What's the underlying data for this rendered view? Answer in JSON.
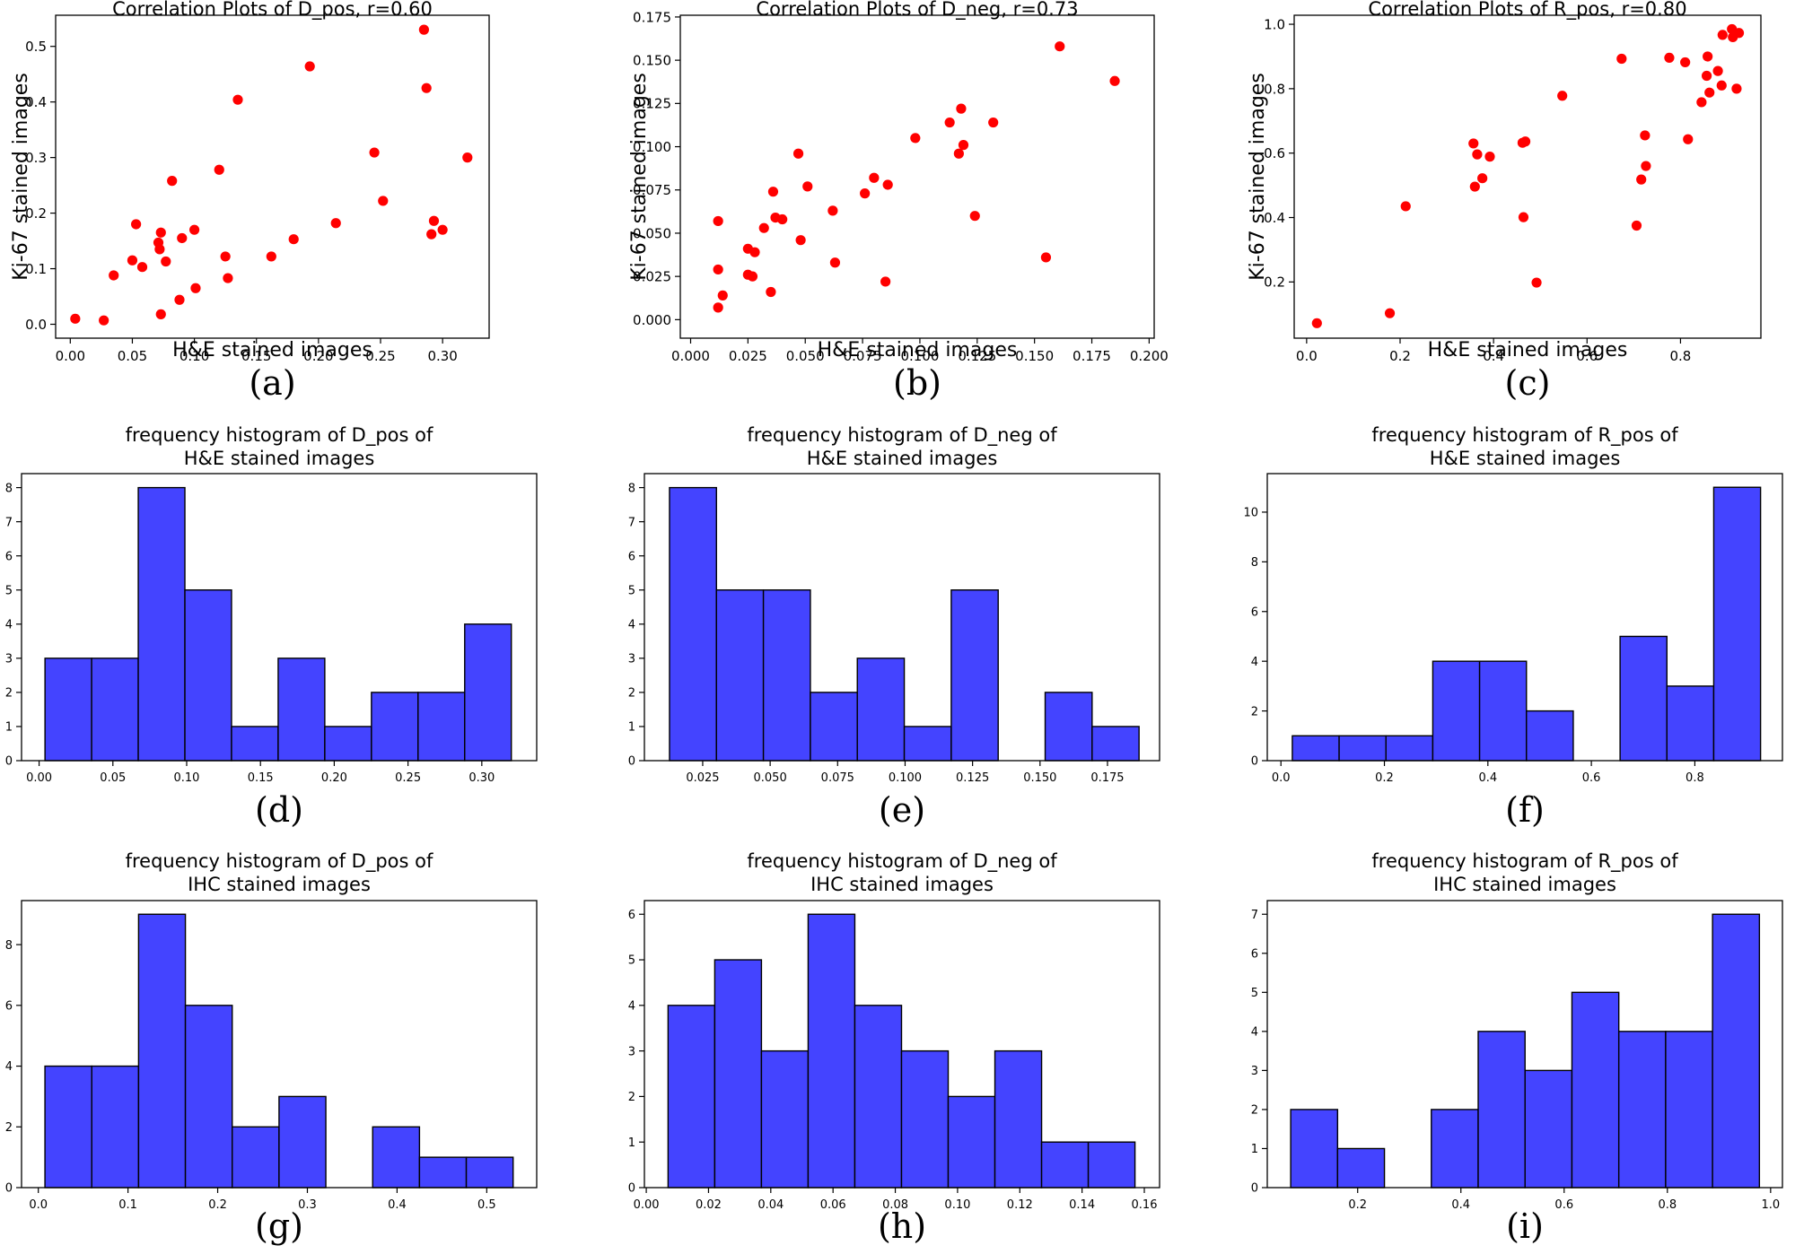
{
  "chart_data": [
    {
      "id": "a",
      "type": "scatter",
      "panel_label": "(a)",
      "title": "Correlation Plots of D_pos, r=0.60",
      "xlabel": "H&E stained images",
      "ylabel": "Ki-67 stained images",
      "xlim": [
        -0.0118,
        0.3375
      ],
      "ylim": [
        -0.025,
        0.556
      ],
      "xticks": [
        0.0,
        0.05,
        0.1,
        0.15,
        0.2,
        0.25,
        0.3
      ],
      "xtick_labels": [
        "0.00",
        "0.05",
        "0.10",
        "0.15",
        "0.20",
        "0.25",
        "0.30"
      ],
      "yticks": [
        0.0,
        0.1,
        0.2,
        0.3,
        0.4,
        0.5
      ],
      "ytick_labels": [
        "0.0",
        "0.1",
        "0.2",
        "0.3",
        "0.4",
        "0.5"
      ],
      "color": "#ff0000",
      "points": [
        [
          0.004,
          0.01
        ],
        [
          0.027,
          0.007
        ],
        [
          0.035,
          0.088
        ],
        [
          0.05,
          0.115
        ],
        [
          0.053,
          0.18
        ],
        [
          0.058,
          0.103
        ],
        [
          0.071,
          0.147
        ],
        [
          0.072,
          0.135
        ],
        [
          0.073,
          0.165
        ],
        [
          0.073,
          0.018
        ],
        [
          0.077,
          0.113
        ],
        [
          0.082,
          0.258
        ],
        [
          0.088,
          0.044
        ],
        [
          0.09,
          0.155
        ],
        [
          0.1,
          0.17
        ],
        [
          0.101,
          0.065
        ],
        [
          0.12,
          0.278
        ],
        [
          0.125,
          0.122
        ],
        [
          0.127,
          0.083
        ],
        [
          0.135,
          0.404
        ],
        [
          0.162,
          0.122
        ],
        [
          0.18,
          0.153
        ],
        [
          0.193,
          0.464
        ],
        [
          0.214,
          0.182
        ],
        [
          0.245,
          0.309
        ],
        [
          0.252,
          0.222
        ],
        [
          0.285,
          0.53
        ],
        [
          0.287,
          0.425
        ],
        [
          0.291,
          0.162
        ],
        [
          0.293,
          0.186
        ],
        [
          0.3,
          0.17
        ],
        [
          0.32,
          0.3
        ]
      ]
    },
    {
      "id": "b",
      "type": "scatter",
      "panel_label": "(b)",
      "title": "Correlation Plots of D_neg, r=0.73",
      "xlabel": "H&E stained images",
      "ylabel": "Ki-67 stained images",
      "xlim": [
        -0.0045,
        0.2022
      ],
      "ylim": [
        -0.0107,
        0.176
      ],
      "xticks": [
        0.0,
        0.025,
        0.05,
        0.075,
        0.1,
        0.125,
        0.15,
        0.175,
        0.2
      ],
      "xtick_labels": [
        "0.000",
        "0.025",
        "0.050",
        "0.075",
        "0.100",
        "0.125",
        "0.150",
        "0.175",
        "0.200"
      ],
      "yticks": [
        0.0,
        0.025,
        0.05,
        0.075,
        0.1,
        0.125,
        0.15,
        0.175
      ],
      "ytick_labels": [
        "0.000",
        "0.025",
        "0.050",
        "0.075",
        "0.100",
        "0.125",
        "0.150",
        "0.175"
      ],
      "color": "#ff0000",
      "points": [
        [
          0.012,
          0.057
        ],
        [
          0.012,
          0.029
        ],
        [
          0.012,
          0.007
        ],
        [
          0.014,
          0.014
        ],
        [
          0.025,
          0.041
        ],
        [
          0.025,
          0.026
        ],
        [
          0.027,
          0.025
        ],
        [
          0.028,
          0.039
        ],
        [
          0.032,
          0.053
        ],
        [
          0.035,
          0.016
        ],
        [
          0.036,
          0.074
        ],
        [
          0.037,
          0.059
        ],
        [
          0.04,
          0.058
        ],
        [
          0.047,
          0.096
        ],
        [
          0.048,
          0.046
        ],
        [
          0.051,
          0.077
        ],
        [
          0.062,
          0.063
        ],
        [
          0.063,
          0.033
        ],
        [
          0.076,
          0.073
        ],
        [
          0.08,
          0.082
        ],
        [
          0.085,
          0.022
        ],
        [
          0.086,
          0.078
        ],
        [
          0.098,
          0.105
        ],
        [
          0.113,
          0.114
        ],
        [
          0.117,
          0.096
        ],
        [
          0.118,
          0.122
        ],
        [
          0.119,
          0.101
        ],
        [
          0.124,
          0.06
        ],
        [
          0.132,
          0.114
        ],
        [
          0.155,
          0.036
        ],
        [
          0.161,
          0.158
        ],
        [
          0.185,
          0.138
        ]
      ]
    },
    {
      "id": "c",
      "type": "scatter",
      "panel_label": "(c)",
      "title": "Correlation Plots of R_pos, r=0.80",
      "xlabel": "H&E stained images",
      "ylabel": "Ki-67 stained images",
      "xlim": [
        -0.0266,
        0.972
      ],
      "ylim": [
        0.0255,
        1.028
      ],
      "xticks": [
        0.0,
        0.2,
        0.4,
        0.6,
        0.8
      ],
      "xtick_labels": [
        "0.0",
        "0.2",
        "0.4",
        "0.6",
        "0.8"
      ],
      "yticks": [
        0.2,
        0.4,
        0.6,
        0.8,
        1.0
      ],
      "ytick_labels": [
        "0.2",
        "0.4",
        "0.6",
        "0.8",
        "1.0"
      ],
      "color": "#ff0000",
      "points": [
        [
          0.022,
          0.072
        ],
        [
          0.178,
          0.103
        ],
        [
          0.212,
          0.435
        ],
        [
          0.357,
          0.63
        ],
        [
          0.36,
          0.496
        ],
        [
          0.365,
          0.596
        ],
        [
          0.376,
          0.522
        ],
        [
          0.392,
          0.589
        ],
        [
          0.462,
          0.632
        ],
        [
          0.468,
          0.636
        ],
        [
          0.464,
          0.401
        ],
        [
          0.492,
          0.198
        ],
        [
          0.547,
          0.778
        ],
        [
          0.674,
          0.893
        ],
        [
          0.706,
          0.375
        ],
        [
          0.716,
          0.518
        ],
        [
          0.724,
          0.655
        ],
        [
          0.726,
          0.56
        ],
        [
          0.776,
          0.896
        ],
        [
          0.81,
          0.882
        ],
        [
          0.816,
          0.643
        ],
        [
          0.845,
          0.758
        ],
        [
          0.856,
          0.84
        ],
        [
          0.858,
          0.9
        ],
        [
          0.862,
          0.788
        ],
        [
          0.88,
          0.855
        ],
        [
          0.888,
          0.81
        ],
        [
          0.89,
          0.967
        ],
        [
          0.91,
          0.985
        ],
        [
          0.912,
          0.96
        ],
        [
          0.92,
          0.8
        ],
        [
          0.925,
          0.973
        ]
      ]
    },
    {
      "id": "d",
      "type": "bar",
      "panel_label": "(d)",
      "title": "frequency histogram of D_pos of",
      "title_line2": "H&E stained images",
      "xlim": [
        -0.0119,
        0.3372
      ],
      "ylim": [
        0,
        8.41
      ],
      "bin_edges": [
        0.004,
        0.0356,
        0.0672,
        0.0988,
        0.1304,
        0.162,
        0.1936,
        0.2252,
        0.2568,
        0.2884,
        0.32
      ],
      "values": [
        3,
        3,
        8,
        5,
        1,
        3,
        1,
        2,
        2,
        4
      ],
      "xticks": [
        0.0,
        0.05,
        0.1,
        0.15,
        0.2,
        0.25,
        0.3
      ],
      "xtick_labels": [
        "0.00",
        "0.05",
        "0.10",
        "0.15",
        "0.20",
        "0.25",
        "0.30"
      ],
      "yticks": [
        0,
        1,
        2,
        3,
        4,
        5,
        6,
        7,
        8
      ],
      "ytick_labels": [
        "0",
        "1",
        "2",
        "3",
        "4",
        "5",
        "6",
        "7",
        "8"
      ],
      "color": "#4444ff"
    },
    {
      "id": "e",
      "type": "bar",
      "panel_label": "(e)",
      "title": "frequency histogram of D_neg of",
      "title_line2": "H&E stained images",
      "xlim": [
        0.0034,
        0.1943
      ],
      "ylim": [
        0,
        8.41
      ],
      "bin_edges": [
        0.0127,
        0.0301,
        0.0475,
        0.0649,
        0.0823,
        0.0997,
        0.1171,
        0.1345,
        0.1519,
        0.1693,
        0.1867
      ],
      "values": [
        8,
        5,
        5,
        2,
        3,
        1,
        5,
        0,
        2,
        1
      ],
      "xticks": [
        0.025,
        0.05,
        0.075,
        0.1,
        0.125,
        0.15,
        0.175
      ],
      "xtick_labels": [
        "0.025",
        "0.050",
        "0.075",
        "0.100",
        "0.125",
        "0.150",
        "0.175"
      ],
      "yticks": [
        0,
        1,
        2,
        3,
        4,
        5,
        6,
        7,
        8
      ],
      "ytick_labels": [
        "0",
        "1",
        "2",
        "3",
        "4",
        "5",
        "6",
        "7",
        "8"
      ],
      "color": "#4444ff"
    },
    {
      "id": "f",
      "type": "bar",
      "panel_label": "(f)",
      "title": "frequency histogram of R_pos of",
      "title_line2": "H&E stained images",
      "xlim": [
        -0.0264,
        0.9693
      ],
      "ylim": [
        0,
        11.55
      ],
      "bin_edges": [
        0.022,
        0.1125,
        0.203,
        0.2935,
        0.384,
        0.4745,
        0.565,
        0.6555,
        0.746,
        0.8365,
        0.927
      ],
      "values": [
        1,
        1,
        1,
        4,
        4,
        2,
        0,
        5,
        3,
        11
      ],
      "xticks": [
        0.0,
        0.2,
        0.4,
        0.6,
        0.8
      ],
      "xtick_labels": [
        "0.0",
        "0.2",
        "0.4",
        "0.6",
        "0.8"
      ],
      "yticks": [
        0,
        2,
        4,
        6,
        8,
        10
      ],
      "ytick_labels": [
        "0",
        "2",
        "4",
        "6",
        "8",
        "10"
      ],
      "color": "#4444ff"
    },
    {
      "id": "g",
      "type": "bar",
      "panel_label": "(g)",
      "title": "frequency histogram of D_pos of",
      "title_line2": "IHC stained images",
      "xlim": [
        -0.0187,
        0.5557
      ],
      "ylim": [
        0,
        9.45
      ],
      "bin_edges": [
        0.0074,
        0.0596,
        0.1118,
        0.164,
        0.2162,
        0.2684,
        0.3206,
        0.3728,
        0.425,
        0.4772,
        0.5294
      ],
      "values": [
        4,
        4,
        9,
        6,
        2,
        3,
        0,
        2,
        1,
        1
      ],
      "xticks": [
        0.0,
        0.1,
        0.2,
        0.3,
        0.4,
        0.5
      ],
      "xtick_labels": [
        "0.0",
        "0.1",
        "0.2",
        "0.3",
        "0.4",
        "0.5"
      ],
      "yticks": [
        0,
        2,
        4,
        6,
        8
      ],
      "ytick_labels": [
        "0",
        "2",
        "4",
        "6",
        "8"
      ],
      "color": "#4444ff"
    },
    {
      "id": "h",
      "type": "bar",
      "panel_label": "(h)",
      "title": "frequency histogram of D_neg of",
      "title_line2": "IHC stained images",
      "xlim": [
        -0.0006,
        0.1649
      ],
      "ylim": [
        0,
        6.3
      ],
      "bin_edges": [
        0.007,
        0.022,
        0.037,
        0.052,
        0.067,
        0.082,
        0.097,
        0.112,
        0.127,
        0.142,
        0.157
      ],
      "values": [
        4,
        5,
        3,
        6,
        4,
        3,
        2,
        3,
        1,
        1
      ],
      "xticks": [
        0.0,
        0.02,
        0.04,
        0.06,
        0.08,
        0.1,
        0.12,
        0.14,
        0.16
      ],
      "xtick_labels": [
        "0.00",
        "0.02",
        "0.04",
        "0.06",
        "0.08",
        "0.10",
        "0.12",
        "0.14",
        "0.16"
      ],
      "yticks": [
        0,
        1,
        2,
        3,
        4,
        5,
        6
      ],
      "ytick_labels": [
        "0",
        "1",
        "2",
        "3",
        "4",
        "5",
        "6"
      ],
      "color": "#4444ff"
    },
    {
      "id": "i",
      "type": "bar",
      "panel_label": "(i)",
      "title": "frequency histogram of R_pos of",
      "title_line2": "IHC stained images",
      "xlim": [
        0.0249,
        1.0229
      ],
      "ylim": [
        0,
        7.35
      ],
      "bin_edges": [
        0.0703,
        0.1611,
        0.2519,
        0.3427,
        0.4335,
        0.5243,
        0.6151,
        0.7059,
        0.7967,
        0.8875,
        0.9783
      ],
      "values": [
        2,
        1,
        0,
        2,
        4,
        3,
        5,
        4,
        4,
        7
      ],
      "xticks": [
        0.2,
        0.4,
        0.6,
        0.8,
        1.0
      ],
      "xtick_labels": [
        "0.2",
        "0.4",
        "0.6",
        "0.8",
        "1.0"
      ],
      "yticks": [
        0,
        1,
        2,
        3,
        4,
        5,
        6,
        7
      ],
      "ytick_labels": [
        "0",
        "1",
        "2",
        "3",
        "4",
        "5",
        "6",
        "7"
      ],
      "color": "#4444ff"
    }
  ]
}
